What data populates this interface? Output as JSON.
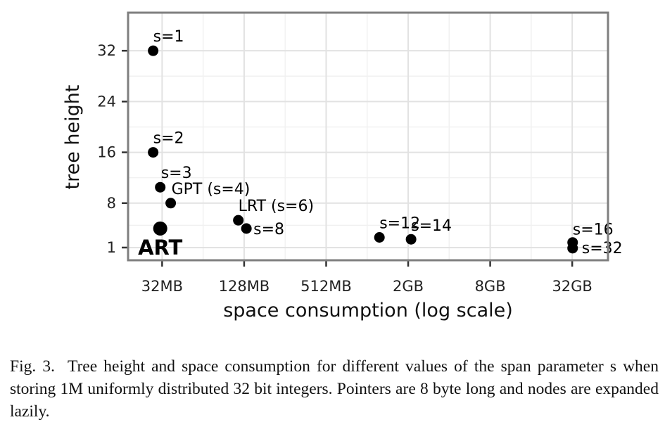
{
  "chart_data": {
    "type": "scatter",
    "xlabel": "space consumption (log scale)",
    "ylabel": "tree height",
    "x_scale": "log2",
    "x_ticks": [
      {
        "value": 32,
        "label": "32MB"
      },
      {
        "value": 128,
        "label": "128MB"
      },
      {
        "value": 512,
        "label": "512MB"
      },
      {
        "value": 2048,
        "label": "2GB"
      },
      {
        "value": 8192,
        "label": "8GB"
      },
      {
        "value": 32768,
        "label": "32GB"
      }
    ],
    "y_ticks": [
      {
        "value": 1,
        "label": "1"
      },
      {
        "value": 8,
        "label": "8"
      },
      {
        "value": 16,
        "label": "16"
      },
      {
        "value": 24,
        "label": "24"
      },
      {
        "value": 32,
        "label": "32"
      }
    ],
    "xlim": [
      18,
      60000
    ],
    "ylim": [
      -1,
      38
    ],
    "grid": true,
    "points": [
      {
        "label": "s=1",
        "x": 27.5,
        "y": 32
      },
      {
        "label": "s=2",
        "x": 27.5,
        "y": 16
      },
      {
        "label": "s=3",
        "x": 31,
        "y": 10.5
      },
      {
        "label": "GPT (s=4)",
        "x": 37,
        "y": 8
      },
      {
        "label": "LRT (s=6)",
        "x": 116,
        "y": 5.3
      },
      {
        "label": "s=8",
        "x": 133,
        "y": 4
      },
      {
        "label": "s=12",
        "x": 1260,
        "y": 2.6
      },
      {
        "label": "s=14",
        "x": 2150,
        "y": 2.3
      },
      {
        "label": "s=16",
        "x": 33000,
        "y": 1.8
      },
      {
        "label": "s=32",
        "x": 33000,
        "y": 0.9
      },
      {
        "label": "ART",
        "x": 31,
        "y": 4
      }
    ]
  },
  "caption": {
    "fig_label": "Fig. 3.",
    "text": "Tree height and space consumption for different values of the span parameter s when storing 1M uniformly distributed 32 bit integers. Pointers are 8 byte long and nodes are expanded lazily."
  }
}
